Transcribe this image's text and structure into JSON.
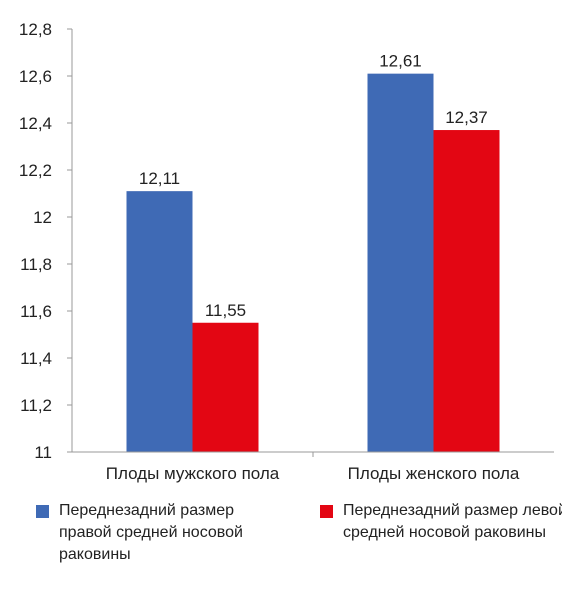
{
  "chart_data": {
    "type": "bar",
    "categories": [
      "Плоды мужского пола",
      "Плоды женского пола"
    ],
    "series": [
      {
        "name": "Переднезадний размер правой средней носовой раковины",
        "color": "#3f6ab5",
        "values": [
          12.11,
          12.61
        ],
        "labels": [
          "12,11",
          "12,61"
        ]
      },
      {
        "name": "Переднезадний размер левой средней носовой раковины",
        "color": "#e30613",
        "values": [
          11.55,
          12.37
        ],
        "labels": [
          "11,55",
          "12,37"
        ]
      }
    ],
    "ylim": [
      11,
      12.8
    ],
    "yticks": [
      11,
      11.2,
      11.4,
      11.6,
      11.8,
      12,
      12.2,
      12.4,
      12.6,
      12.8
    ],
    "ytick_labels": [
      "11",
      "11,2",
      "11,4",
      "11,6",
      "11,8",
      "12",
      "12,2",
      "12,4",
      "12,6",
      "12,8"
    ],
    "grid": false,
    "legend_position": "bottom",
    "title": "",
    "xlabel": "",
    "ylabel": ""
  }
}
